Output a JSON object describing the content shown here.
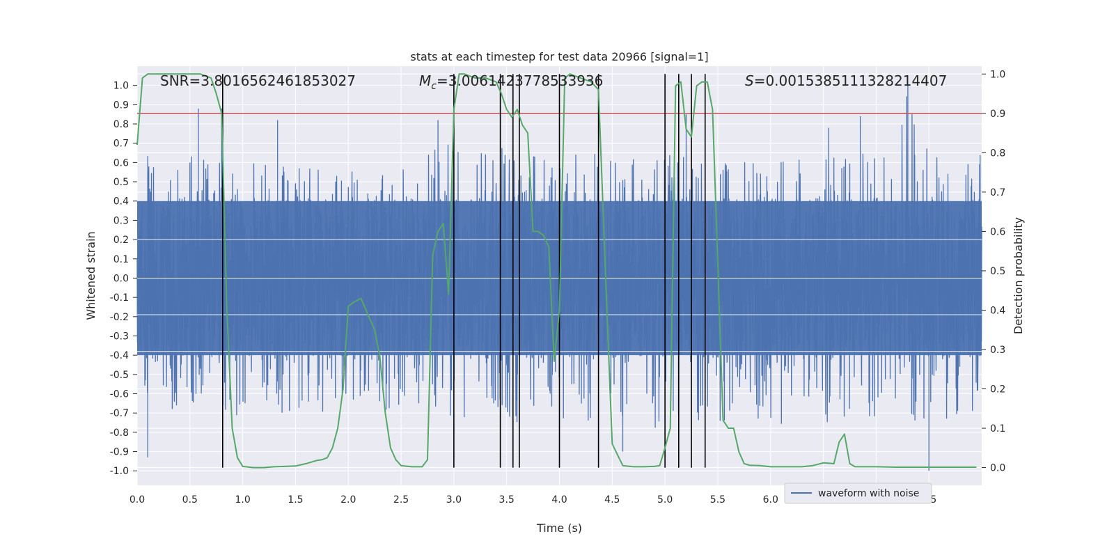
{
  "chart_data": {
    "type": "line",
    "title": "stats at each timestep for test data 20966 [signal=1]",
    "xlabel": "Time (s)",
    "ylabel": "Whitened strain",
    "y2label": "Detection probability",
    "xlim": [
      0.0,
      8.0
    ],
    "ylim": [
      -1.075,
      1.1
    ],
    "y2lim": [
      -0.045,
      1.02
    ],
    "grid": true,
    "x_ticks": [
      "0.0",
      "0.5",
      "1.0",
      "1.5",
      "2.0",
      "2.5",
      "3.0",
      "3.5",
      "4.0",
      "4.5",
      "5.0",
      "5.5",
      "6.0",
      "6.5",
      "7.0",
      "7.5"
    ],
    "y_ticks": [
      "1.0",
      "0.9",
      "0.8",
      "0.7",
      "0.6",
      "0.5",
      "0.4",
      "0.3",
      "0.2",
      "0.1",
      "0.0",
      "-0.1",
      "-0.2",
      "-0.3",
      "-0.4",
      "-0.5",
      "-0.6",
      "-0.7",
      "-0.8",
      "-0.9",
      "-1.0"
    ],
    "y2_ticks": [
      "1.0",
      "0.9",
      "0.8",
      "0.7",
      "0.6",
      "0.5",
      "0.4",
      "0.3",
      "0.2",
      "0.1",
      "0.0"
    ],
    "annotations": {
      "snr": "SNR=3.8016562461853027",
      "mc_sym": "M",
      "mc_sub": "c",
      "mc_val": "=3.0061423778533936",
      "s_sym": "S",
      "s_val": "=0.0015385111328214407"
    },
    "threshold": {
      "value": 0.9,
      "axis": "right",
      "color": "#c44e52"
    },
    "event_lines_x": [
      0.81,
      3.0,
      3.44,
      3.56,
      3.62,
      4.0,
      4.37,
      5.0,
      5.13,
      5.25,
      5.38
    ],
    "series": [
      {
        "name": "waveform with noise",
        "axis": "left",
        "color": "#4c72b0",
        "envelope": {
          "x": [
            0.0,
            0.5,
            0.8,
            1.0,
            2.0,
            2.5,
            3.0,
            3.5,
            4.0,
            4.5,
            5.0,
            5.5,
            6.0,
            7.0,
            7.3,
            7.5,
            8.0
          ],
          "upper": [
            0.72,
            0.7,
            0.6,
            0.6,
            0.55,
            0.66,
            0.7,
            0.7,
            0.66,
            0.66,
            0.68,
            0.6,
            0.62,
            0.66,
            1.0,
            0.66,
            0.66
          ],
          "lower": [
            -0.7,
            -0.72,
            -0.7,
            -0.72,
            -0.72,
            -0.72,
            -0.74,
            -0.76,
            -0.74,
            -0.76,
            -0.8,
            -0.74,
            -0.76,
            -0.74,
            -0.74,
            -0.74,
            -0.72
          ]
        },
        "spikes": [
          {
            "x": 0.1,
            "y": -0.93
          },
          {
            "x": 0.58,
            "y": 0.88
          },
          {
            "x": 0.8,
            "y": 0.88
          },
          {
            "x": 1.33,
            "y": 0.82
          },
          {
            "x": 2.85,
            "y": 0.82
          },
          {
            "x": 4.6,
            "y": -0.9
          },
          {
            "x": 5.2,
            "y": 0.85
          },
          {
            "x": 6.55,
            "y": 0.78
          },
          {
            "x": 6.85,
            "y": 0.84
          },
          {
            "x": 7.3,
            "y": 1.0
          },
          {
            "x": 7.5,
            "y": -1.0
          }
        ]
      },
      {
        "name": "",
        "axis": "right",
        "color": "#55a868",
        "x": [
          0.0,
          0.05,
          0.1,
          0.2,
          0.3,
          0.4,
          0.5,
          0.6,
          0.7,
          0.75,
          0.8,
          0.85,
          0.9,
          0.95,
          1.0,
          1.1,
          1.2,
          1.3,
          1.4,
          1.5,
          1.6,
          1.7,
          1.75,
          1.8,
          1.85,
          1.9,
          1.95,
          2.0,
          2.05,
          2.12,
          2.2,
          2.25,
          2.3,
          2.35,
          2.4,
          2.45,
          2.5,
          2.6,
          2.7,
          2.75,
          2.8,
          2.85,
          2.9,
          2.95,
          3.0,
          3.05,
          3.1,
          3.2,
          3.3,
          3.4,
          3.45,
          3.5,
          3.55,
          3.6,
          3.65,
          3.7,
          3.75,
          3.8,
          3.85,
          3.9,
          3.95,
          4.0,
          4.05,
          4.1,
          4.2,
          4.3,
          4.37,
          4.45,
          4.5,
          4.6,
          4.7,
          4.8,
          4.9,
          4.95,
          5.0,
          5.05,
          5.1,
          5.15,
          5.2,
          5.25,
          5.3,
          5.35,
          5.4,
          5.45,
          5.5,
          5.55,
          5.6,
          5.65,
          5.7,
          5.75,
          5.8,
          5.9,
          6.0,
          6.2,
          6.3,
          6.4,
          6.5,
          6.6,
          6.65,
          6.7,
          6.75,
          6.8,
          6.9,
          7.0,
          7.2,
          7.4,
          7.6,
          7.8,
          7.95
        ],
        "values": [
          0.82,
          0.99,
          1.0,
          1.0,
          1.0,
          1.0,
          1.0,
          1.0,
          0.99,
          0.95,
          0.9,
          0.4,
          0.1,
          0.025,
          0.003,
          0.0,
          0.0,
          0.002,
          0.003,
          0.004,
          0.01,
          0.018,
          0.02,
          0.025,
          0.05,
          0.1,
          0.2,
          0.41,
          0.42,
          0.43,
          0.38,
          0.35,
          0.28,
          0.14,
          0.05,
          0.02,
          0.005,
          0.002,
          0.002,
          0.02,
          0.54,
          0.6,
          0.62,
          0.44,
          0.91,
          1.0,
          1.0,
          0.99,
          0.99,
          0.98,
          0.95,
          0.91,
          0.89,
          0.91,
          0.87,
          0.85,
          0.6,
          0.6,
          0.59,
          0.56,
          0.27,
          0.4,
          0.99,
          1.0,
          0.99,
          0.98,
          0.96,
          0.4,
          0.06,
          0.005,
          0.002,
          0.002,
          0.003,
          0.005,
          0.05,
          0.1,
          0.97,
          0.98,
          0.86,
          0.84,
          0.97,
          0.98,
          0.98,
          0.91,
          0.52,
          0.12,
          0.1,
          0.1,
          0.04,
          0.01,
          0.006,
          0.005,
          0.002,
          0.002,
          0.002,
          0.005,
          0.012,
          0.01,
          0.065,
          0.085,
          0.01,
          0.002,
          0.002,
          0.002,
          0.001,
          0.001,
          0.001,
          0.001,
          0.001
        ]
      }
    ],
    "legend": {
      "placement": "lower center-right",
      "entries": [
        "waveform with noise"
      ]
    }
  }
}
